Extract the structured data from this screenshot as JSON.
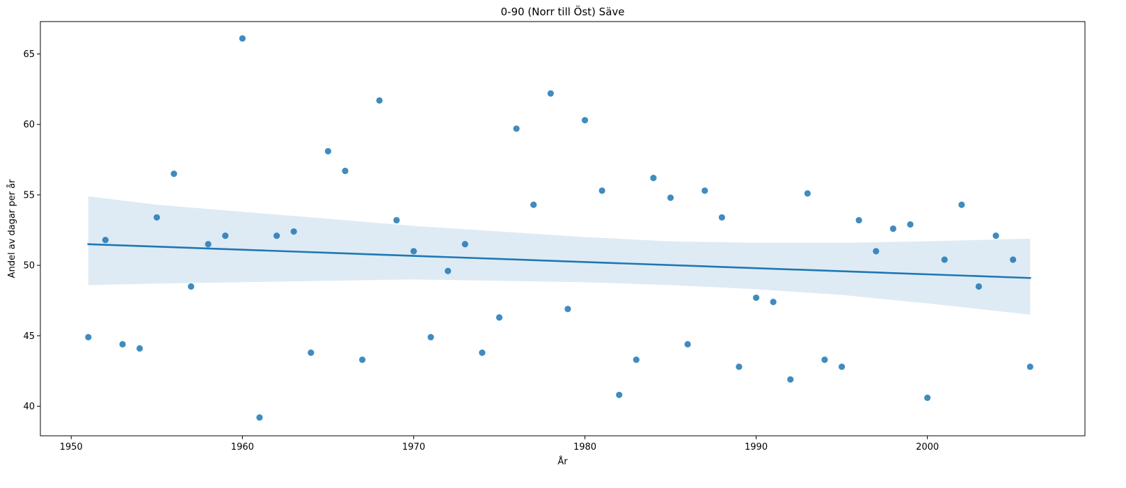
{
  "chart_data": {
    "type": "scatter",
    "title": "0-90 (Norr till Öst) Säve",
    "xlabel": "År",
    "ylabel": "Andel av dagar per år",
    "xlim": [
      1948.2,
      2009.2
    ],
    "ylim": [
      37.9,
      67.3
    ],
    "xticks": [
      1950,
      1960,
      1970,
      1980,
      1990,
      2000
    ],
    "yticks": [
      40,
      45,
      50,
      55,
      60,
      65
    ],
    "grid": false,
    "colors": {
      "points": "#1f77b4",
      "line": "#1f77b4",
      "band": "#1f77b4"
    },
    "points": [
      {
        "x": 1951,
        "y": 44.9
      },
      {
        "x": 1952,
        "y": 51.8
      },
      {
        "x": 1953,
        "y": 44.4
      },
      {
        "x": 1954,
        "y": 44.1
      },
      {
        "x": 1955,
        "y": 53.4
      },
      {
        "x": 1956,
        "y": 56.5
      },
      {
        "x": 1957,
        "y": 48.5
      },
      {
        "x": 1958,
        "y": 51.5
      },
      {
        "x": 1959,
        "y": 52.1
      },
      {
        "x": 1960,
        "y": 66.1
      },
      {
        "x": 1961,
        "y": 39.2
      },
      {
        "x": 1962,
        "y": 52.1
      },
      {
        "x": 1963,
        "y": 52.4
      },
      {
        "x": 1964,
        "y": 43.8
      },
      {
        "x": 1965,
        "y": 58.1
      },
      {
        "x": 1966,
        "y": 56.7
      },
      {
        "x": 1967,
        "y": 43.3
      },
      {
        "x": 1968,
        "y": 61.7
      },
      {
        "x": 1969,
        "y": 53.2
      },
      {
        "x": 1970,
        "y": 51.0
      },
      {
        "x": 1971,
        "y": 44.9
      },
      {
        "x": 1972,
        "y": 49.6
      },
      {
        "x": 1973,
        "y": 51.5
      },
      {
        "x": 1974,
        "y": 43.8
      },
      {
        "x": 1975,
        "y": 46.3
      },
      {
        "x": 1976,
        "y": 59.7
      },
      {
        "x": 1977,
        "y": 54.3
      },
      {
        "x": 1978,
        "y": 62.2
      },
      {
        "x": 1979,
        "y": 46.9
      },
      {
        "x": 1980,
        "y": 60.3
      },
      {
        "x": 1981,
        "y": 55.3
      },
      {
        "x": 1982,
        "y": 40.8
      },
      {
        "x": 1983,
        "y": 43.3
      },
      {
        "x": 1984,
        "y": 56.2
      },
      {
        "x": 1985,
        "y": 54.8
      },
      {
        "x": 1986,
        "y": 44.4
      },
      {
        "x": 1987,
        "y": 55.3
      },
      {
        "x": 1988,
        "y": 53.4
      },
      {
        "x": 1989,
        "y": 42.8
      },
      {
        "x": 1990,
        "y": 47.7
      },
      {
        "x": 1991,
        "y": 47.4
      },
      {
        "x": 1992,
        "y": 41.9
      },
      {
        "x": 1993,
        "y": 55.1
      },
      {
        "x": 1994,
        "y": 43.3
      },
      {
        "x": 1995,
        "y": 42.8
      },
      {
        "x": 1996,
        "y": 53.2
      },
      {
        "x": 1997,
        "y": 51.0
      },
      {
        "x": 1998,
        "y": 52.6
      },
      {
        "x": 1999,
        "y": 52.9
      },
      {
        "x": 2000,
        "y": 40.6
      },
      {
        "x": 2001,
        "y": 50.4
      },
      {
        "x": 2002,
        "y": 54.3
      },
      {
        "x": 2003,
        "y": 48.5
      },
      {
        "x": 2004,
        "y": 52.1
      },
      {
        "x": 2005,
        "y": 50.4
      },
      {
        "x": 2006,
        "y": 42.8
      }
    ],
    "regression": {
      "x": [
        1951,
        2006
      ],
      "y": [
        51.5,
        49.1
      ]
    },
    "confidence_band": {
      "x": [
        1951,
        1955,
        1960,
        1965,
        1970,
        1975,
        1980,
        1985,
        1990,
        1995,
        2000,
        2006
      ],
      "upper": [
        54.9,
        54.3,
        53.8,
        53.3,
        52.8,
        52.4,
        52.0,
        51.7,
        51.6,
        51.6,
        51.7,
        51.9
      ],
      "lower": [
        48.6,
        48.7,
        48.8,
        48.9,
        49.0,
        48.9,
        48.8,
        48.6,
        48.3,
        47.9,
        47.3,
        46.5
      ]
    }
  }
}
